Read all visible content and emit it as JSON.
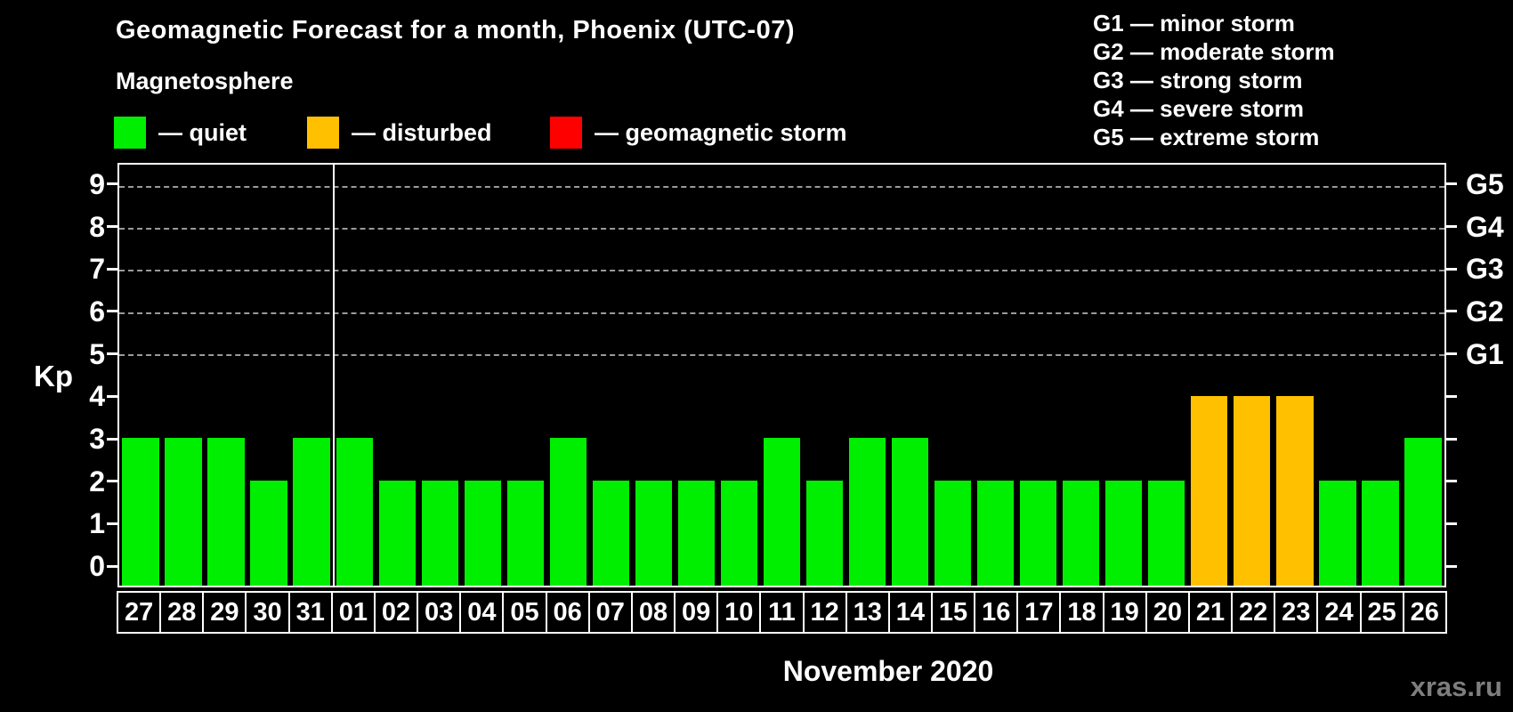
{
  "header": {
    "title": "Geomagnetic Forecast for a month, Phoenix (UTC-07)",
    "subtitle": "Magnetosphere"
  },
  "legend": {
    "items": [
      {
        "name": "quiet",
        "label": "— quiet",
        "color": "#00ee00"
      },
      {
        "name": "disturbed",
        "label": "— disturbed",
        "color": "#ffc000"
      },
      {
        "name": "storm",
        "label": "— geomagnetic storm",
        "color": "#ff0000"
      }
    ]
  },
  "g_legend": {
    "items": [
      "G1 — minor storm",
      "G2 — moderate storm",
      "G3 — strong storm",
      "G4 — severe storm",
      "G5 — extreme storm"
    ]
  },
  "watermark": "xras.ru",
  "chart_data": {
    "type": "bar",
    "title": "Geomagnetic Forecast for a month, Phoenix (UTC-07)",
    "subtitle": "Magnetosphere",
    "xlabel": "November 2020",
    "ylabel": "Kp",
    "categories": [
      "27",
      "28",
      "29",
      "30",
      "31",
      "01",
      "02",
      "03",
      "04",
      "05",
      "06",
      "07",
      "08",
      "09",
      "10",
      "11",
      "12",
      "13",
      "14",
      "15",
      "16",
      "17",
      "18",
      "19",
      "20",
      "21",
      "22",
      "23",
      "24",
      "25",
      "26"
    ],
    "values": [
      3,
      3,
      3,
      2,
      3,
      3,
      2,
      2,
      2,
      2,
      3,
      2,
      2,
      2,
      2,
      3,
      2,
      3,
      3,
      2,
      2,
      2,
      2,
      2,
      2,
      4,
      4,
      4,
      2,
      2,
      3
    ],
    "ylim": [
      -0.5,
      9.5
    ],
    "yticks": [
      0,
      1,
      2,
      3,
      4,
      5,
      6,
      7,
      8,
      9
    ],
    "gridlines_kp": [
      5,
      6,
      7,
      8,
      9
    ],
    "right_axis_labels": [
      {
        "kp": 5,
        "label": "G1"
      },
      {
        "kp": 6,
        "label": "G2"
      },
      {
        "kp": 7,
        "label": "G3"
      },
      {
        "kp": 8,
        "label": "G4"
      },
      {
        "kp": 9,
        "label": "G5"
      }
    ],
    "month_separator_after": "31",
    "colors": {
      "quiet": "#00ee00",
      "disturbed": "#ffc000",
      "storm": "#ff0000"
    },
    "color_rule": "kp<=3 quiet (green), kp=4 disturbed (orange), kp>=5 geomagnetic storm (red)",
    "legend_position": "top-left",
    "grid": "dashed horizontal lines at G1–G5 levels only"
  }
}
